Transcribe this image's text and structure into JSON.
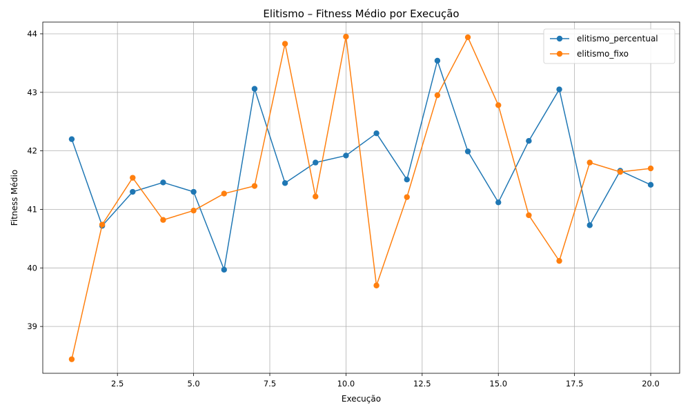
{
  "chart_data": {
    "type": "line",
    "title": "Elitismo – Fitness Médio por Execução",
    "xlabel": "Execução",
    "ylabel": "Fitness Médio",
    "xlim": [
      0.05,
      20.95
    ],
    "ylim": [
      38.2,
      44.2
    ],
    "xticks": [
      2.5,
      5.0,
      7.5,
      10.0,
      12.5,
      15.0,
      17.5,
      20.0
    ],
    "xtick_labels": [
      "2.5",
      "5.0",
      "7.5",
      "10.0",
      "12.5",
      "15.0",
      "17.5",
      "20.0"
    ],
    "yticks": [
      39,
      40,
      41,
      42,
      43,
      44
    ],
    "ytick_labels": [
      "39",
      "40",
      "41",
      "42",
      "43",
      "44"
    ],
    "grid": true,
    "legend_position": "top-right",
    "x": [
      1,
      2,
      3,
      4,
      5,
      6,
      7,
      8,
      9,
      10,
      11,
      12,
      13,
      14,
      15,
      16,
      17,
      18,
      19,
      20
    ],
    "series": [
      {
        "name": "elitismo_percentual",
        "color": "#1f77b4",
        "marker": "circle",
        "values": [
          42.2,
          40.72,
          41.3,
          41.46,
          41.3,
          39.97,
          43.06,
          41.45,
          41.8,
          41.92,
          42.3,
          41.51,
          43.54,
          41.99,
          41.12,
          42.17,
          43.05,
          40.73,
          41.66,
          41.42
        ]
      },
      {
        "name": "elitismo_fixo",
        "color": "#ff7f0e",
        "marker": "circle",
        "values": [
          38.44,
          40.74,
          41.54,
          40.82,
          40.98,
          41.27,
          41.4,
          43.83,
          41.22,
          43.95,
          39.7,
          41.21,
          42.95,
          43.94,
          42.78,
          40.9,
          40.12,
          41.8,
          41.64,
          41.7
        ]
      }
    ]
  }
}
